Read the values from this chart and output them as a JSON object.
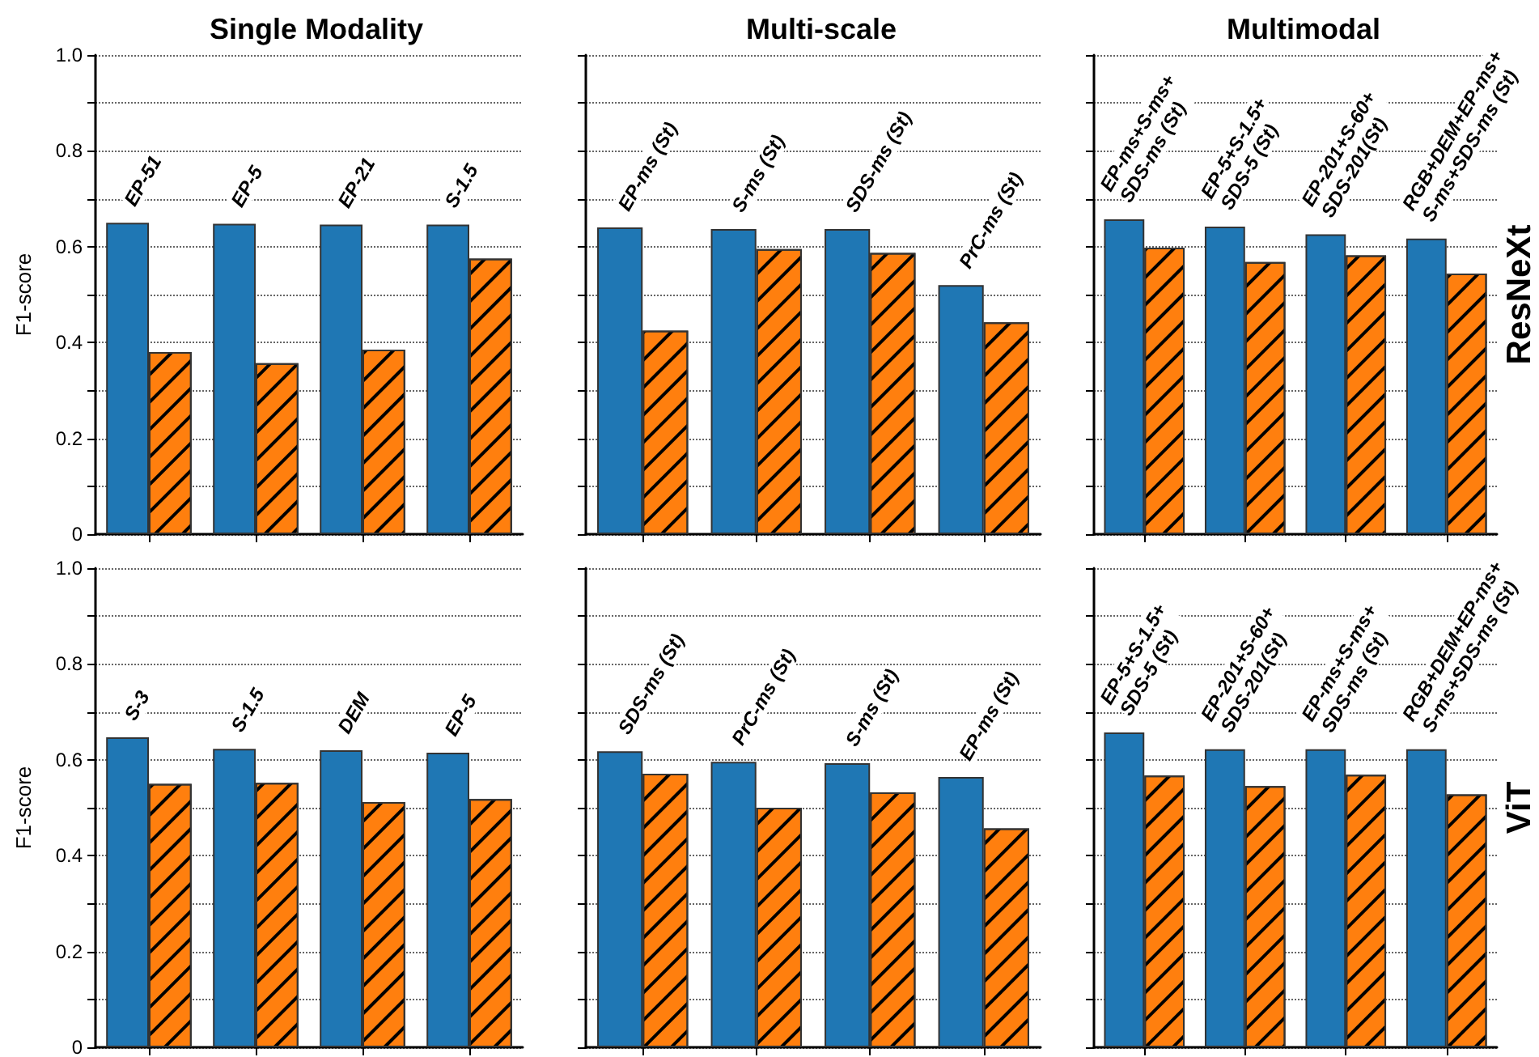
{
  "chart_data": [
    {
      "type": "bar",
      "title": "Single Modality",
      "ylabel": "F1-score",
      "categories": [
        "EP-51",
        "EP-5",
        "EP-21",
        "S-1.5"
      ],
      "series": [
        {
          "color": "#1f77b4",
          "values": [
            0.65,
            0.648,
            0.646,
            0.646
          ]
        },
        {
          "color": "#ff7f0e",
          "values": [
            0.38,
            0.357,
            0.385,
            0.575
          ]
        }
      ],
      "ylim": [
        0,
        1
      ],
      "yticks": [
        0,
        {
          "value": 0.1,
          "label": null
        },
        0.2,
        {
          "value": 0.3,
          "label": null
        },
        0.4,
        {
          "value": 0.5,
          "label": null
        },
        0.6,
        {
          "value": 0.7,
          "label": null
        },
        0.8,
        {
          "value": 0.9,
          "label": null
        },
        {
          "value": 1,
          "label": "1.0"
        }
      ],
      "grid": true
    },
    {
      "type": "bar",
      "title": "Multi-scale",
      "categories": [
        "EP-ms (St)",
        "S-ms (St)",
        "SDS-ms (St)",
        "PrC-ms (St)"
      ],
      "series": [
        {
          "color": "#1f77b4",
          "values": [
            0.64,
            0.637,
            0.637,
            0.52
          ]
        },
        {
          "color": "#ff7f0e",
          "values": [
            0.425,
            0.595,
            0.587,
            0.442
          ]
        }
      ],
      "ylim": [
        0,
        1
      ],
      "yticks": [
        0,
        0.1,
        0.2,
        0.3,
        0.4,
        0.5,
        0.6,
        0.7,
        0.8,
        0.9,
        1
      ],
      "grid": true,
      "tick_labels": "x"
    },
    {
      "type": "bar",
      "title": "Multimodal",
      "y2label": "ResNeXt",
      "categories": [
        "EP-ms+S-ms+\nSDS-ms (St)",
        "EP-5+S-1.5+\nSDS-5 (St)",
        "EP-201+S-60+\nSDS-201(St)",
        "RGB+DEM+EP-ms+\nS-ms+SDS-ms (St)"
      ],
      "series": [
        {
          "color": "#1f77b4",
          "values": [
            0.657,
            0.642,
            0.626,
            0.617
          ]
        },
        {
          "color": "#ff7f0e",
          "values": [
            0.598,
            0.568,
            0.582,
            0.544
          ]
        }
      ],
      "ylim": [
        0,
        1
      ],
      "yticks": [
        0,
        0.1,
        0.2,
        0.3,
        0.4,
        0.5,
        0.6,
        0.7,
        0.8,
        0.9,
        1
      ],
      "grid": true,
      "tick_labels": "x"
    },
    {
      "type": "bar",
      "ylabel": "F1-score",
      "categories": [
        "S-3",
        "S-1.5",
        "DEM",
        "EP-5"
      ],
      "series": [
        {
          "color": "#1f77b4",
          "values": [
            0.647,
            0.623,
            0.62,
            0.615
          ]
        },
        {
          "color": "#ff7f0e",
          "values": [
            0.55,
            0.552,
            0.512,
            0.518
          ]
        }
      ],
      "ylim": [
        0,
        1
      ],
      "yticks": [
        0,
        {
          "value": 0.1,
          "label": null
        },
        0.2,
        {
          "value": 0.3,
          "label": null
        },
        0.4,
        {
          "value": 0.5,
          "label": null
        },
        0.6,
        {
          "value": 0.7,
          "label": null
        },
        0.8,
        {
          "value": 0.9,
          "label": null
        },
        {
          "value": 1,
          "label": "1.0"
        }
      ],
      "grid": true
    },
    {
      "type": "bar",
      "categories": [
        "SDS-ms (St)",
        "PrC-ms (St)",
        "S-ms (St)",
        "EP-ms (St)"
      ],
      "series": [
        {
          "color": "#1f77b4",
          "values": [
            0.618,
            0.596,
            0.593,
            0.564
          ]
        },
        {
          "color": "#ff7f0e",
          "values": [
            0.571,
            0.5,
            0.532,
            0.457
          ]
        }
      ],
      "ylim": [
        0,
        1
      ],
      "yticks": [
        0,
        0.1,
        0.2,
        0.3,
        0.4,
        0.5,
        0.6,
        0.7,
        0.8,
        0.9,
        1
      ],
      "grid": true,
      "tick_labels": "x"
    },
    {
      "type": "bar",
      "y2label": "ViT",
      "categories": [
        "EP-5+S-1.5+\nSDS-5 (St)",
        "EP-201+S-60+\nSDS-201(St)",
        "EP-ms+S-ms+\nSDS-ms (St)",
        "RGB+DEM+EP-ms+\nS-ms+SDS-ms (St)"
      ],
      "series": [
        {
          "color": "#1f77b4",
          "values": [
            0.657,
            0.622,
            0.622,
            0.622
          ]
        },
        {
          "color": "#ff7f0e",
          "values": [
            0.567,
            0.545,
            0.569,
            0.528
          ]
        }
      ],
      "ylim": [
        0,
        1
      ],
      "yticks": [
        0,
        0.1,
        0.2,
        0.3,
        0.4,
        0.5,
        0.6,
        0.7,
        0.8,
        0.9,
        1
      ],
      "grid": true,
      "tick_labels": "x"
    }
  ]
}
